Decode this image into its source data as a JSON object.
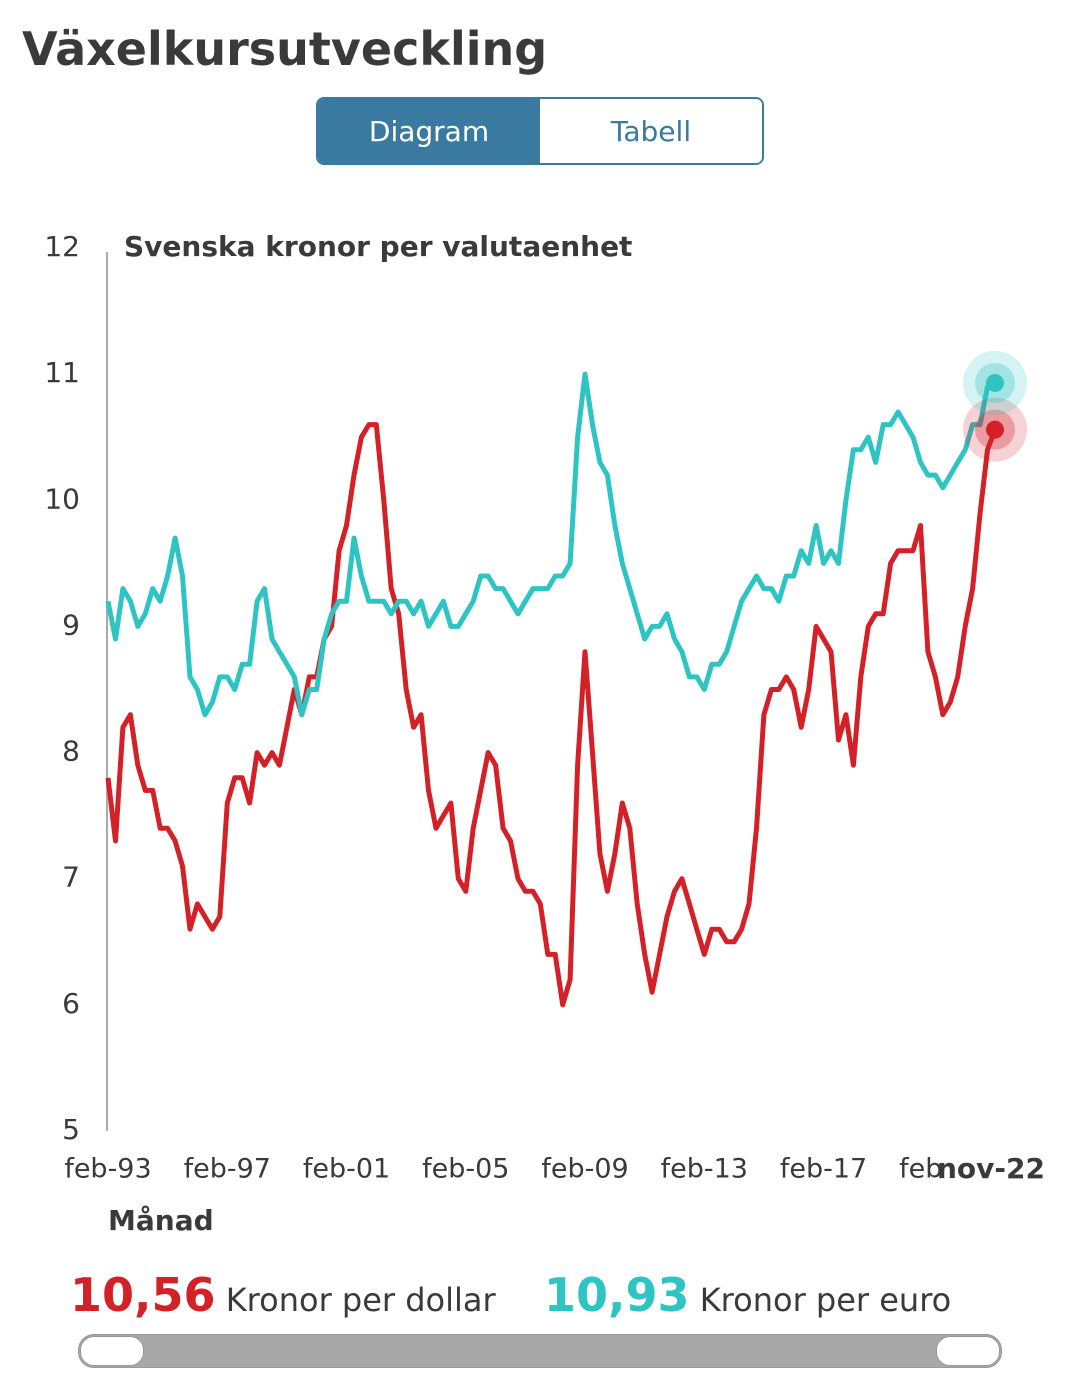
{
  "header": {
    "title": "Växelkursutveckling",
    "tabs": [
      "Diagram",
      "Tabell"
    ]
  },
  "chart_data": {
    "type": "line",
    "title": "Svenska kronor per valutaenhet",
    "x_label": "Månad",
    "x": [
      "feb-93",
      "maj-93",
      "aug-93",
      "nov-93",
      "feb-94",
      "maj-94",
      "aug-94",
      "nov-94",
      "feb-95",
      "maj-95",
      "aug-95",
      "nov-95",
      "feb-96",
      "maj-96",
      "aug-96",
      "nov-96",
      "feb-97",
      "maj-97",
      "aug-97",
      "nov-97",
      "feb-98",
      "maj-98",
      "aug-98",
      "nov-98",
      "feb-99",
      "maj-99",
      "aug-99",
      "nov-99",
      "feb-00",
      "maj-00",
      "aug-00",
      "nov-00",
      "feb-01",
      "maj-01",
      "aug-01",
      "nov-01",
      "feb-02",
      "maj-02",
      "aug-02",
      "nov-02",
      "feb-03",
      "maj-03",
      "aug-03",
      "nov-03",
      "feb-04",
      "maj-04",
      "aug-04",
      "nov-04",
      "feb-05",
      "maj-05",
      "aug-05",
      "nov-05",
      "feb-06",
      "maj-06",
      "aug-06",
      "nov-06",
      "feb-07",
      "maj-07",
      "aug-07",
      "nov-07",
      "feb-08",
      "maj-08",
      "aug-08",
      "nov-08",
      "feb-09",
      "maj-09",
      "aug-09",
      "nov-09",
      "feb-10",
      "maj-10",
      "aug-10",
      "nov-10",
      "feb-11",
      "maj-11",
      "aug-11",
      "nov-11",
      "feb-12",
      "maj-12",
      "aug-12",
      "nov-12",
      "feb-13",
      "maj-13",
      "aug-13",
      "nov-13",
      "feb-14",
      "maj-14",
      "aug-14",
      "nov-14",
      "feb-15",
      "maj-15",
      "aug-15",
      "nov-15",
      "feb-16",
      "maj-16",
      "aug-16",
      "nov-16",
      "feb-17",
      "maj-17",
      "aug-17",
      "nov-17",
      "feb-18",
      "maj-18",
      "aug-18",
      "nov-18",
      "feb-19",
      "maj-19",
      "aug-19",
      "nov-19",
      "feb-20",
      "maj-20",
      "aug-20",
      "nov-20",
      "feb-21",
      "maj-21",
      "aug-21",
      "nov-21",
      "feb-22",
      "maj-22",
      "aug-22",
      "nov-22"
    ],
    "series": [
      {
        "name": "Kronor per dollar",
        "color": "#d42027",
        "latest_label": "10,56",
        "values": [
          7.8,
          7.3,
          8.2,
          8.3,
          7.9,
          7.7,
          7.7,
          7.4,
          7.4,
          7.3,
          7.1,
          6.6,
          6.8,
          6.7,
          6.6,
          6.7,
          7.6,
          7.8,
          7.8,
          7.6,
          8.0,
          7.9,
          8.0,
          7.9,
          8.2,
          8.5,
          8.3,
          8.6,
          8.6,
          8.9,
          9.0,
          9.6,
          9.8,
          10.2,
          10.5,
          10.6,
          10.6,
          10.0,
          9.3,
          9.1,
          8.5,
          8.2,
          8.3,
          7.7,
          7.4,
          7.5,
          7.6,
          7.0,
          6.9,
          7.4,
          7.7,
          8.0,
          7.9,
          7.4,
          7.3,
          7.0,
          6.9,
          6.9,
          6.8,
          6.4,
          6.4,
          6.0,
          6.2,
          7.9,
          8.8,
          8.0,
          7.2,
          6.9,
          7.2,
          7.6,
          7.4,
          6.8,
          6.4,
          6.1,
          6.4,
          6.7,
          6.9,
          7.0,
          6.8,
          6.6,
          6.4,
          6.6,
          6.6,
          6.5,
          6.5,
          6.6,
          6.8,
          7.4,
          8.3,
          8.5,
          8.5,
          8.6,
          8.5,
          8.2,
          8.5,
          9.0,
          8.9,
          8.8,
          8.1,
          8.3,
          7.9,
          8.6,
          9.0,
          9.1,
          9.1,
          9.5,
          9.6,
          9.6,
          9.6,
          9.8,
          8.8,
          8.6,
          8.3,
          8.4,
          8.6,
          9.0,
          9.3,
          9.9,
          10.4,
          10.56
        ]
      },
      {
        "name": "Kronor per euro",
        "color": "#2ec4c4",
        "latest_label": "10,93",
        "values": [
          9.2,
          8.9,
          9.3,
          9.2,
          9.0,
          9.1,
          9.3,
          9.2,
          9.4,
          9.7,
          9.4,
          8.6,
          8.5,
          8.3,
          8.4,
          8.6,
          8.6,
          8.5,
          8.7,
          8.7,
          9.2,
          9.3,
          8.9,
          8.8,
          8.7,
          8.6,
          8.3,
          8.5,
          8.5,
          8.9,
          9.1,
          9.2,
          9.2,
          9.7,
          9.4,
          9.2,
          9.2,
          9.2,
          9.1,
          9.2,
          9.2,
          9.1,
          9.2,
          9.0,
          9.1,
          9.2,
          9.0,
          9.0,
          9.1,
          9.2,
          9.4,
          9.4,
          9.3,
          9.3,
          9.2,
          9.1,
          9.2,
          9.3,
          9.3,
          9.3,
          9.4,
          9.4,
          9.5,
          10.5,
          11.0,
          10.6,
          10.3,
          10.2,
          9.8,
          9.5,
          9.3,
          9.1,
          8.9,
          9.0,
          9.0,
          9.1,
          8.9,
          8.8,
          8.6,
          8.6,
          8.5,
          8.7,
          8.7,
          8.8,
          9.0,
          9.2,
          9.3,
          9.4,
          9.3,
          9.3,
          9.2,
          9.4,
          9.4,
          9.6,
          9.5,
          9.8,
          9.5,
          9.6,
          9.5,
          10.0,
          10.4,
          10.4,
          10.5,
          10.3,
          10.6,
          10.6,
          10.7,
          10.6,
          10.5,
          10.3,
          10.2,
          10.2,
          10.1,
          10.2,
          10.3,
          10.4,
          10.6,
          10.6,
          10.9,
          10.93
        ]
      }
    ],
    "ylim": [
      5,
      12
    ],
    "yticks": [
      5,
      6,
      7,
      8,
      9,
      10,
      11,
      12
    ],
    "grid": false
  }
}
